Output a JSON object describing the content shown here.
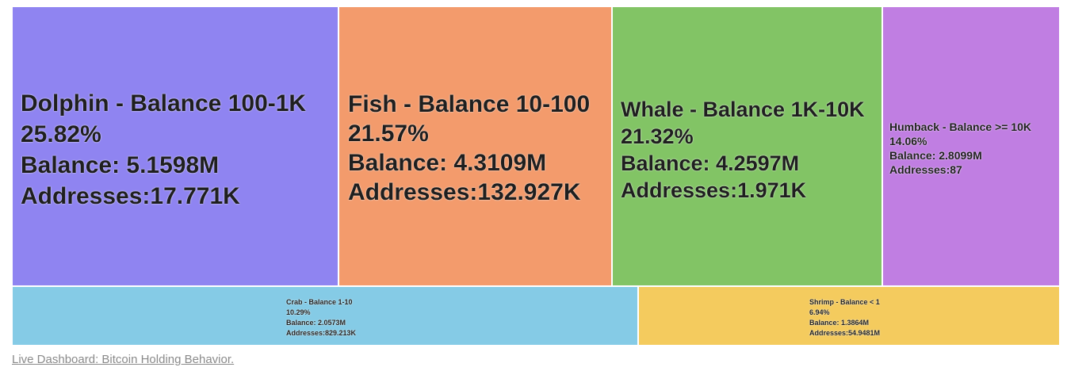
{
  "chart_data": {
    "type": "treemap",
    "nodes": [
      {
        "name": "Dolphin - Balance 100-1K",
        "percent": "25.82%",
        "balance": "Balance: 5.1598M",
        "addresses": "Addresses:17.771K",
        "color": "#8f84f1"
      },
      {
        "name": "Fish - Balance 10-100",
        "percent": "21.57%",
        "balance": "Balance: 4.3109M",
        "addresses": "Addresses:132.927K",
        "color": "#f39b6c"
      },
      {
        "name": "Whale - Balance 1K-10K",
        "percent": "21.32%",
        "balance": "Balance: 4.2597M",
        "addresses": "Addresses:1.971K",
        "color": "#82c465"
      },
      {
        "name": "Humback - Balance >= 10K",
        "percent": "14.06%",
        "balance": "Balance: 2.8099M",
        "addresses": "Addresses:87",
        "color": "#c07ee2"
      },
      {
        "name": "Crab - Balance 1-10",
        "percent": "10.29%",
        "balance": "Balance: 2.0573M",
        "addresses": "Addresses:829.213K",
        "color": "#85cbe6"
      },
      {
        "name": "Shrimp - Balance < 1",
        "percent": "6.94%",
        "balance": "Balance: 1.3864M",
        "addresses": "Addresses:54.9481M",
        "color": "#f4cb5e"
      }
    ]
  },
  "footer": {
    "link_text": "Live Dashboard: Bitcoin Holding Behavior."
  }
}
